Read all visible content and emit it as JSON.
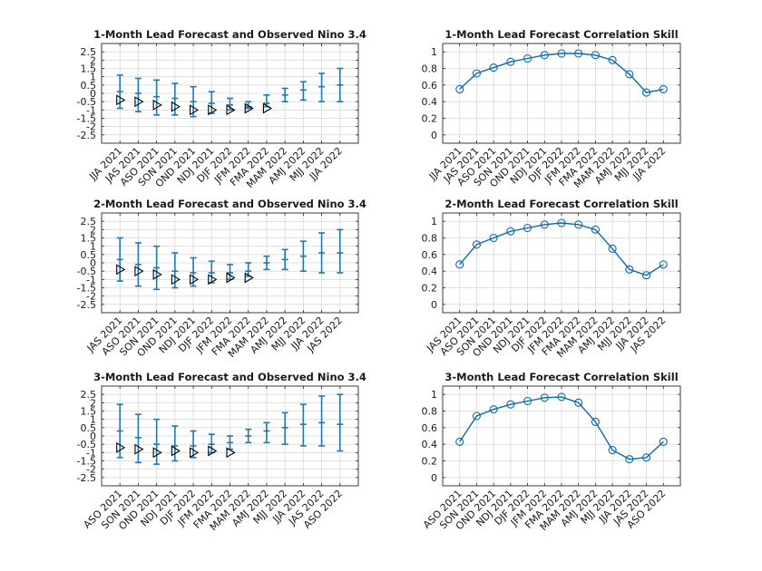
{
  "figure": {
    "background": "#ffffff"
  },
  "style": {
    "errorbar_color": "#1f77b4",
    "line_color": "#0b6aa8",
    "observed_marker_color": "#000000",
    "grid_color": "#d9d9d9",
    "axis_color": "#262626"
  },
  "chart_data": [
    {
      "type": "errorbar",
      "title": "1-Month Lead Forecast and Observed Nino 3.4",
      "xlabel": "",
      "ylabel": "",
      "categories": [
        "JJA 2021",
        "JAS 2021",
        "ASO 2021",
        "SON 2021",
        "OND 2021",
        "NDJ 2021",
        "DJF 2022",
        "JFM 2022",
        "FMA 2022",
        "MAM 2022",
        "AMJ 2022",
        "MJJ 2022",
        "JJA 2022"
      ],
      "ylim": [
        -3,
        3
      ],
      "yticks": [
        -2.5,
        -2,
        -1.5,
        -1,
        -0.5,
        0,
        0.5,
        1,
        1.5,
        2,
        2.5
      ],
      "ytick_labels": [
        "-2.5",
        "-2",
        "-1.5",
        "-1",
        "-0.5",
        "0",
        "0.5",
        "1",
        "1.5",
        "2",
        "2.5"
      ],
      "grid": true,
      "series": [
        {
          "role": "forecast_mean",
          "values": [
            0.1,
            0.0,
            -0.2,
            -0.3,
            -0.5,
            -0.6,
            -0.7,
            -0.8,
            -0.6,
            -0.1,
            0.2,
            0.4,
            0.5
          ]
        },
        {
          "role": "forecast_low",
          "values": [
            -0.9,
            -1.1,
            -1.3,
            -1.3,
            -1.4,
            -1.2,
            -1.0,
            -0.9,
            -0.8,
            -0.5,
            -0.4,
            -0.5,
            -0.5
          ]
        },
        {
          "role": "forecast_high",
          "values": [
            1.1,
            0.9,
            0.8,
            0.6,
            0.4,
            0.1,
            -0.3,
            -0.5,
            -0.1,
            0.3,
            0.7,
            1.2,
            1.5
          ]
        },
        {
          "role": "observed",
          "marker": "triangle-right",
          "values": [
            -0.4,
            -0.5,
            -0.7,
            -0.8,
            -1.0,
            -1.0,
            -1.0,
            -0.9,
            -0.9,
            null,
            null,
            null,
            null
          ]
        }
      ]
    },
    {
      "type": "line",
      "title": "1-Month Lead Forecast Correlation Skill",
      "xlabel": "",
      "ylabel": "",
      "categories": [
        "JJA 2021",
        "JAS 2021",
        "ASO 2021",
        "SON 2021",
        "OND 2021",
        "NDJ 2021",
        "DJF 2022",
        "JFM 2022",
        "FMA 2022",
        "MAM 2022",
        "AMJ 2022",
        "MJJ 2022",
        "JJA 2022"
      ],
      "ylim": [
        -0.1,
        1.1
      ],
      "yticks": [
        0,
        0.2,
        0.4,
        0.6,
        0.8,
        1
      ],
      "ytick_labels": [
        "0",
        "0.2",
        "0.4",
        "0.6",
        "0.8",
        "1"
      ],
      "grid": true,
      "series": [
        {
          "role": "correlation",
          "marker": "circle",
          "values": [
            0.55,
            0.74,
            0.81,
            0.88,
            0.92,
            0.96,
            0.98,
            0.98,
            0.96,
            0.9,
            0.73,
            0.51,
            0.55
          ]
        }
      ]
    },
    {
      "type": "errorbar",
      "title": "2-Month Lead Forecast and Observed Nino 3.4",
      "xlabel": "",
      "ylabel": "",
      "categories": [
        "JAS 2021",
        "ASO 2021",
        "SON 2021",
        "OND 2021",
        "NDJ 2021",
        "DJF 2022",
        "JFM 2022",
        "FMA 2022",
        "MAM 2022",
        "AMJ 2022",
        "MJJ 2022",
        "JJA 2022",
        "JAS 2022"
      ],
      "ylim": [
        -3,
        3
      ],
      "yticks": [
        -2.5,
        -2,
        -1.5,
        -1,
        -0.5,
        0,
        0.5,
        1,
        1.5,
        2,
        2.5
      ],
      "ytick_labels": [
        "-2.5",
        "-2",
        "-1.5",
        "-1",
        "-0.5",
        "0",
        "0.5",
        "1",
        "1.5",
        "2",
        "2.5"
      ],
      "grid": true,
      "series": [
        {
          "role": "forecast_mean",
          "values": [
            0.2,
            -0.1,
            -0.3,
            -0.5,
            -0.6,
            -0.6,
            -0.6,
            -0.5,
            0.0,
            0.2,
            0.4,
            0.6,
            0.6
          ]
        },
        {
          "role": "forecast_low",
          "values": [
            -1.1,
            -1.4,
            -1.6,
            -1.5,
            -1.4,
            -1.2,
            -1.0,
            -0.8,
            -0.4,
            -0.4,
            -0.5,
            -0.6,
            -0.6
          ]
        },
        {
          "role": "forecast_high",
          "values": [
            1.5,
            1.2,
            1.0,
            0.6,
            0.3,
            0.1,
            -0.1,
            0.0,
            0.4,
            0.8,
            1.3,
            1.8,
            2.0
          ]
        },
        {
          "role": "observed",
          "marker": "triangle-right",
          "values": [
            -0.4,
            -0.5,
            -0.7,
            -1.0,
            -1.0,
            -1.0,
            -0.9,
            -0.9,
            null,
            null,
            null,
            null,
            null
          ]
        }
      ]
    },
    {
      "type": "line",
      "title": "2-Month Lead Forecast Correlation Skill",
      "xlabel": "",
      "ylabel": "",
      "categories": [
        "JAS 2021",
        "ASO 2021",
        "SON 2021",
        "OND 2021",
        "NDJ 2021",
        "DJF 2022",
        "JFM 2022",
        "FMA 2022",
        "MAM 2022",
        "AMJ 2022",
        "MJJ 2022",
        "JJA 2022",
        "JAS 2022"
      ],
      "ylim": [
        -0.1,
        1.1
      ],
      "yticks": [
        0,
        0.2,
        0.4,
        0.6,
        0.8,
        1
      ],
      "ytick_labels": [
        "0",
        "0.2",
        "0.4",
        "0.6",
        "0.8",
        "1"
      ],
      "grid": true,
      "series": [
        {
          "role": "correlation",
          "marker": "circle",
          "values": [
            0.48,
            0.72,
            0.8,
            0.88,
            0.92,
            0.96,
            0.98,
            0.96,
            0.9,
            0.67,
            0.42,
            0.35,
            0.48
          ]
        }
      ]
    },
    {
      "type": "errorbar",
      "title": "3-Month Lead Forecast and Observed Nino 3.4",
      "xlabel": "",
      "ylabel": "",
      "categories": [
        "ASO 2021",
        "SON 2021",
        "OND 2021",
        "NDJ 2021",
        "DJF 2022",
        "JFM 2022",
        "FMA 2022",
        "MAM 2022",
        "AMJ 2022",
        "MJJ 2022",
        "JJA 2022",
        "JAS 2022",
        "ASO 2022"
      ],
      "ylim": [
        -3,
        3
      ],
      "yticks": [
        -2.5,
        -2,
        -1.5,
        -1,
        -0.5,
        0,
        0.5,
        1,
        1.5,
        2,
        2.5
      ],
      "ytick_labels": [
        "-2.5",
        "-2",
        "-1.5",
        "-1",
        "-0.5",
        "0",
        "0.5",
        "1",
        "1.5",
        "2",
        "2.5"
      ],
      "grid": true,
      "series": [
        {
          "role": "forecast_mean",
          "values": [
            0.3,
            -0.1,
            -0.5,
            -0.6,
            -0.6,
            -0.5,
            -0.4,
            0.0,
            0.3,
            0.5,
            0.7,
            0.8,
            0.7
          ]
        },
        {
          "role": "forecast_low",
          "values": [
            -1.3,
            -1.6,
            -1.7,
            -1.5,
            -1.3,
            -1.0,
            -0.8,
            -0.4,
            -0.4,
            -0.5,
            -0.6,
            -0.6,
            -0.9
          ]
        },
        {
          "role": "forecast_high",
          "values": [
            1.9,
            1.3,
            1.0,
            0.6,
            0.3,
            0.1,
            0.0,
            0.4,
            0.8,
            1.4,
            1.9,
            2.4,
            2.5
          ]
        },
        {
          "role": "observed",
          "marker": "triangle-right",
          "values": [
            -0.7,
            -0.8,
            -1.0,
            -0.9,
            -1.0,
            -0.9,
            -1.0,
            null,
            null,
            null,
            null,
            null,
            null
          ]
        }
      ]
    },
    {
      "type": "line",
      "title": "3-Month Lead Forecast Correlation Skill",
      "xlabel": "",
      "ylabel": "",
      "categories": [
        "ASO 2021",
        "SON 2021",
        "OND 2021",
        "NDJ 2021",
        "DJF 2022",
        "JFM 2022",
        "FMA 2022",
        "MAM 2022",
        "AMJ 2022",
        "MJJ 2022",
        "JJA 2022",
        "JAS 2022",
        "ASO 2022"
      ],
      "ylim": [
        -0.1,
        1.1
      ],
      "yticks": [
        0,
        0.2,
        0.4,
        0.6,
        0.8,
        1
      ],
      "ytick_labels": [
        "0",
        "0.2",
        "0.4",
        "0.6",
        "0.8",
        "1"
      ],
      "grid": true,
      "series": [
        {
          "role": "correlation",
          "marker": "circle",
          "values": [
            0.43,
            0.74,
            0.82,
            0.88,
            0.92,
            0.96,
            0.97,
            0.9,
            0.67,
            0.33,
            0.22,
            0.24,
            0.43
          ]
        }
      ]
    }
  ]
}
